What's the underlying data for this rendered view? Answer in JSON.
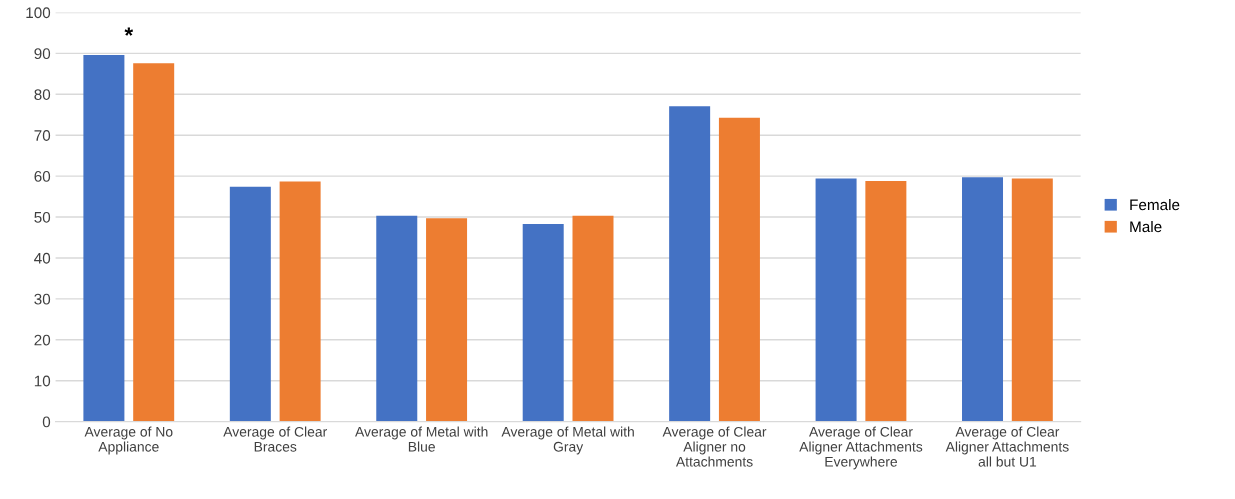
{
  "chart_data": {
    "type": "bar",
    "categories": [
      "Average of No\nAppliance",
      "Average of Clear\nBraces",
      "Average of Metal with\nBlue",
      "Average of Metal with\nGray",
      "Average of Clear\nAligner no\nAttachments",
      "Average of Clear\nAligner Attachments\nEverywhere",
      "Average of Clear\nAligner Attachments\nall but U1"
    ],
    "series": [
      {
        "name": "Female",
        "color": "#4472c4",
        "values": [
          89.6,
          57.4,
          50.3,
          48.3,
          77.1,
          59.4,
          59.7
        ]
      },
      {
        "name": "Male",
        "color": "#ed7d31",
        "values": [
          87.6,
          58.7,
          49.7,
          50.3,
          74.3,
          58.8,
          59.4
        ]
      }
    ],
    "annotations": [
      "*"
    ],
    "ylim": [
      0,
      100
    ],
    "yticks": [
      0,
      10,
      20,
      30,
      40,
      50,
      60,
      70,
      80,
      90,
      100
    ],
    "grid": "y",
    "legend": "right"
  }
}
